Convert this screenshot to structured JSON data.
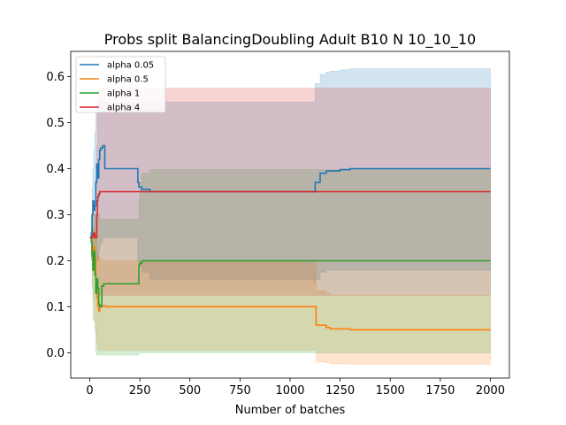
{
  "chart_data": {
    "type": "line",
    "title": "Probs split BalancingDoubling Adult B10 N 10_10_10",
    "xlabel": "Number of batches",
    "ylabel": "",
    "xlim": [
      -95,
      2095
    ],
    "ylim": [
      -0.055,
      0.655
    ],
    "xticks": [
      0,
      250,
      500,
      750,
      1000,
      1250,
      1500,
      1750,
      2000
    ],
    "xtick_labels": [
      "0",
      "250",
      "500",
      "750",
      "1000",
      "1250",
      "1500",
      "1750",
      "2000"
    ],
    "yticks": [
      0.0,
      0.1,
      0.2,
      0.3,
      0.4,
      0.5,
      0.6
    ],
    "ytick_labels": [
      "0.0",
      "0.1",
      "0.2",
      "0.3",
      "0.4",
      "0.5",
      "0.6"
    ],
    "grid": false,
    "legend_position": "top-left",
    "series": [
      {
        "name": "alpha 0.05",
        "color": "#1f77b4",
        "x": [
          0,
          8,
          12,
          16,
          20,
          25,
          30,
          35,
          40,
          45,
          50,
          55,
          65,
          75,
          120,
          240,
          245,
          260,
          300,
          1120,
          1125,
          1150,
          1180,
          1200,
          1250,
          1300,
          2000
        ],
        "y": [
          0.25,
          0.26,
          0.3,
          0.33,
          0.31,
          0.32,
          0.37,
          0.41,
          0.38,
          0.42,
          0.44,
          0.445,
          0.45,
          0.4,
          0.4,
          0.37,
          0.36,
          0.355,
          0.35,
          0.35,
          0.37,
          0.39,
          0.395,
          0.395,
          0.398,
          0.4,
          0.4
        ],
        "band_upper": [
          0.25,
          0.3,
          0.36,
          0.4,
          0.44,
          0.48,
          0.52,
          0.54,
          0.545,
          0.545,
          0.545,
          0.545,
          0.545,
          0.545,
          0.545,
          0.545,
          0.545,
          0.545,
          0.545,
          0.545,
          0.585,
          0.605,
          0.61,
          0.612,
          0.615,
          0.617,
          0.617
        ],
        "band_lower": [
          0.25,
          0.22,
          0.24,
          0.26,
          0.21,
          0.19,
          0.2,
          0.22,
          0.2,
          0.22,
          0.23,
          0.24,
          0.25,
          0.25,
          0.25,
          0.2,
          0.19,
          0.175,
          0.16,
          0.155,
          0.16,
          0.175,
          0.18,
          0.18,
          0.18,
          0.18,
          0.18
        ]
      },
      {
        "name": "alpha 0.5",
        "color": "#ff7f0e",
        "x": [
          0,
          8,
          12,
          16,
          20,
          25,
          30,
          35,
          40,
          45,
          50,
          60,
          70,
          80,
          240,
          260,
          300,
          1120,
          1130,
          1180,
          1200,
          1300,
          2000
        ],
        "y": [
          0.25,
          0.24,
          0.22,
          0.2,
          0.23,
          0.21,
          0.15,
          0.12,
          0.1,
          0.09,
          0.1,
          0.102,
          0.102,
          0.1,
          0.1,
          0.1,
          0.1,
          0.1,
          0.06,
          0.055,
          0.052,
          0.05,
          0.05
        ],
        "band_upper": [
          0.25,
          0.27,
          0.27,
          0.25,
          0.27,
          0.26,
          0.25,
          0.22,
          0.21,
          0.205,
          0.205,
          0.2,
          0.2,
          0.2,
          0.2,
          0.2,
          0.2,
          0.2,
          0.135,
          0.13,
          0.125,
          0.125,
          0.125
        ],
        "band_lower": [
          0.25,
          0.2,
          0.15,
          0.12,
          0.11,
          0.07,
          0.04,
          0.02,
          0.01,
          0.005,
          0.005,
          0.005,
          0.005,
          0.005,
          0.005,
          0.005,
          0.005,
          0.005,
          -0.02,
          -0.022,
          -0.024,
          -0.025,
          -0.025
        ]
      },
      {
        "name": "alpha 1",
        "color": "#2ca02c",
        "x": [
          0,
          8,
          12,
          16,
          20,
          25,
          30,
          35,
          40,
          45,
          50,
          60,
          70,
          80,
          230,
          240,
          245,
          250,
          260,
          300,
          2000
        ],
        "y": [
          0.25,
          0.24,
          0.21,
          0.18,
          0.22,
          0.17,
          0.13,
          0.16,
          0.14,
          0.105,
          0.1,
          0.145,
          0.15,
          0.15,
          0.15,
          0.15,
          0.19,
          0.195,
          0.2,
          0.2,
          0.2
        ],
        "band_upper": [
          0.25,
          0.27,
          0.28,
          0.29,
          0.3,
          0.3,
          0.3,
          0.3,
          0.3,
          0.3,
          0.29,
          0.29,
          0.29,
          0.29,
          0.29,
          0.29,
          0.33,
          0.37,
          0.39,
          0.398,
          0.4
        ],
        "band_lower": [
          0.25,
          0.2,
          0.14,
          0.07,
          0.08,
          0.05,
          0.0,
          -0.005,
          -0.005,
          -0.005,
          -0.005,
          -0.005,
          -0.005,
          -0.005,
          -0.005,
          -0.005,
          0.0,
          0.0,
          0.0,
          0.0,
          0.0
        ]
      },
      {
        "name": "alpha 4",
        "color": "#d62728",
        "x": [
          0,
          10,
          15,
          20,
          25,
          30,
          35,
          38,
          40,
          45,
          50,
          55,
          60,
          2000
        ],
        "y": [
          0.25,
          0.25,
          0.255,
          0.26,
          0.25,
          0.25,
          0.3,
          0.33,
          0.34,
          0.345,
          0.35,
          0.35,
          0.35,
          0.35
        ],
        "band_upper": [
          0.25,
          0.26,
          0.27,
          0.3,
          0.33,
          0.38,
          0.45,
          0.52,
          0.56,
          0.57,
          0.575,
          0.575,
          0.575,
          0.575
        ],
        "band_lower": [
          0.25,
          0.24,
          0.23,
          0.21,
          0.18,
          0.15,
          0.14,
          0.13,
          0.125,
          0.125,
          0.125,
          0.125,
          0.125,
          0.125
        ]
      }
    ]
  }
}
